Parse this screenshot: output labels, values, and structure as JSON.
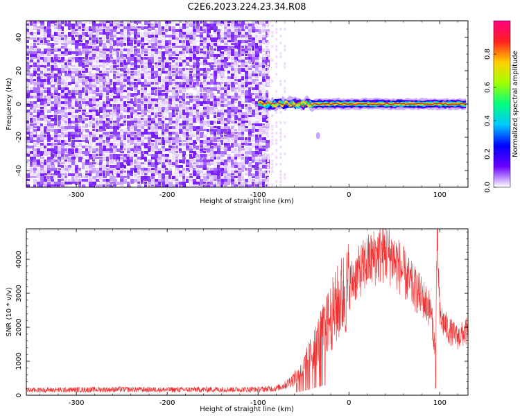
{
  "title": "C2E6.2023.224.23.34.R08",
  "colorbar": {
    "label": "Normalized spectral amplitude",
    "ticks": [
      "0.0",
      "0.2",
      "0.4",
      "0.6",
      "0.8"
    ],
    "tick_values": [
      0.0,
      0.2,
      0.4,
      0.6,
      0.8
    ],
    "range": [
      0,
      1
    ],
    "stops": [
      "#ffffff",
      "#6a00ff",
      "#0000ff",
      "#00c8ff",
      "#00ff80",
      "#a0ff00",
      "#ffd000",
      "#ff2020",
      "#ff0080"
    ]
  },
  "chart_data": [
    {
      "type": "heatmap",
      "xlabel": "Height of straight line (km)",
      "ylabel": "Frequency (Hz)",
      "xlim": [
        -355,
        131
      ],
      "ylim": [
        -50,
        50
      ],
      "x_ticks": [
        -300,
        -200,
        -100,
        0,
        100
      ],
      "x_tick_labels": [
        "-300",
        "-200",
        "-100",
        "0",
        "100"
      ],
      "y_ticks": [
        -40,
        -20,
        0,
        20,
        40
      ],
      "y_tick_labels": [
        "-40",
        "-20",
        "0",
        "20",
        "40"
      ],
      "noise_region_x": [
        -355,
        -90
      ],
      "signal_band": {
        "x_start": -100,
        "x_end": 131,
        "center_frequency": 0,
        "peak_amplitude": 0.9
      }
    },
    {
      "type": "line",
      "xlabel": "Height of straight line (km)",
      "ylabel": "SNR (10 * v/v)",
      "xlim": [
        -355,
        131
      ],
      "ylim": [
        0,
        4900
      ],
      "x_ticks": [
        -300,
        -200,
        -100,
        0,
        100
      ],
      "x_tick_labels": [
        "-300",
        "-200",
        "-100",
        "0",
        "100"
      ],
      "y_ticks": [
        0,
        1000,
        2000,
        3000,
        4000
      ],
      "y_tick_labels": [
        "0",
        "1000",
        "2000",
        "3000",
        "4000"
      ],
      "color": "#f03030",
      "series": [
        {
          "x": [
            -355,
            -300,
            -250,
            -200,
            -150,
            -100,
            -80,
            -70,
            -60,
            -50,
            -40,
            -30,
            -20,
            -10,
            0,
            10,
            20,
            30,
            40,
            50,
            60,
            70,
            80,
            90,
            95,
            97,
            100,
            110,
            120,
            131
          ],
          "values": [
            150,
            160,
            170,
            160,
            170,
            170,
            200,
            300,
            500,
            800,
            1300,
            1800,
            2300,
            2800,
            3200,
            3600,
            3900,
            4100,
            4200,
            4000,
            3600,
            3200,
            2900,
            2500,
            1300,
            4800,
            2300,
            1900,
            1700,
            1900
          ]
        }
      ]
    }
  ]
}
